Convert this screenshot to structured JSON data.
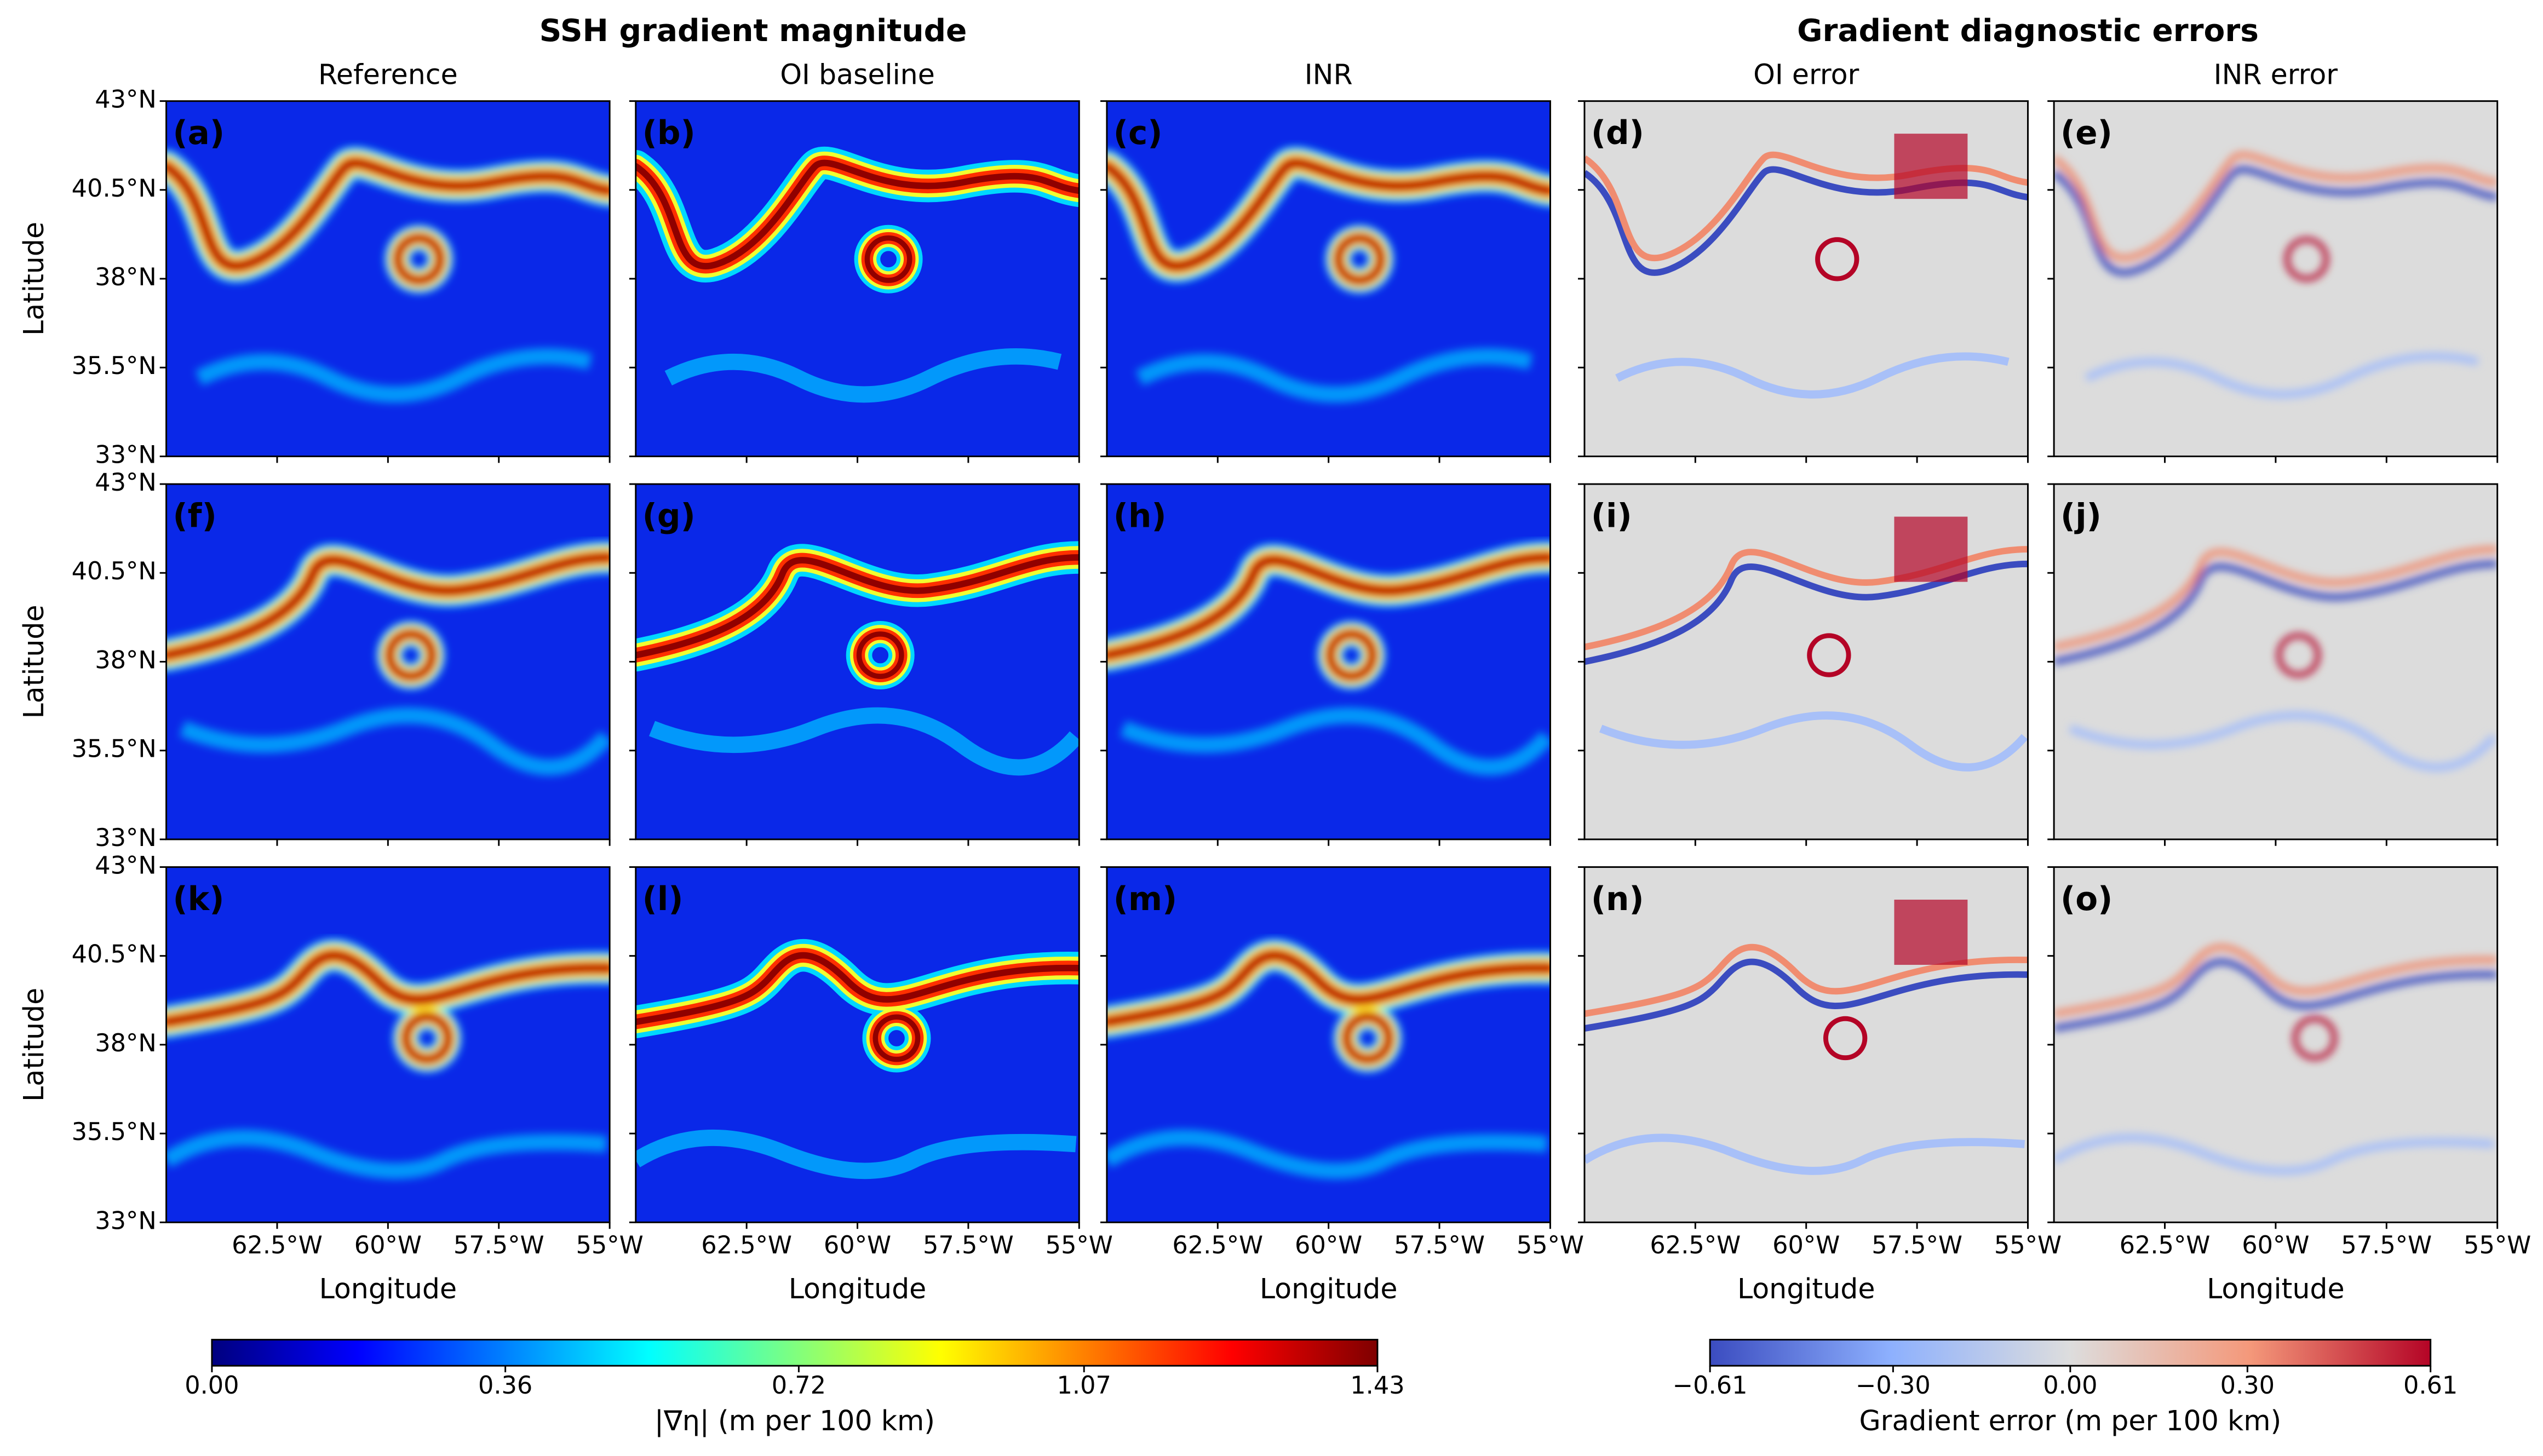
{
  "titles": [
    "SSH gradient magnitude",
    "Gradient diagnostic errors"
  ],
  "column_titles": [
    "Reference",
    "OI baseline",
    "INR",
    "OI error",
    "INR error"
  ],
  "panel_labels": [
    [
      "(a)",
      "(b)",
      "(c)",
      "(d)",
      "(e)"
    ],
    [
      "(f)",
      "(g)",
      "(h)",
      "(i)",
      "(j)"
    ],
    [
      "(k)",
      "(l)",
      "(m)",
      "(n)",
      "(o)"
    ]
  ],
  "ylabel": "Latitude",
  "xlabel": "Longitude",
  "ylim": [
    33,
    43
  ],
  "yticks": [
    {
      "value": 33,
      "label": "33°N"
    },
    {
      "value": 35.5,
      "label": "35.5°N"
    },
    {
      "value": 38,
      "label": "38°N"
    },
    {
      "value": 40.5,
      "label": "40.5°N"
    },
    {
      "value": 43,
      "label": "43°N"
    }
  ],
  "xlim": [
    -65,
    -55
  ],
  "xticks": [
    {
      "value": -62.5,
      "label": "62.5°W"
    },
    {
      "value": -60,
      "label": "60°W"
    },
    {
      "value": -57.5,
      "label": "57.5°W"
    },
    {
      "value": -55,
      "label": "55°W"
    }
  ],
  "colorbars": [
    {
      "label": "|∇η| (m per 100 km)",
      "lim": [
        0,
        1.43
      ],
      "ticks": [
        {
          "value": 0,
          "label": "0.00"
        },
        0.36,
        0.72,
        1.07,
        1.43
      ],
      "colors": [
        "#00007f",
        "#0000ff",
        "#007fff",
        "#00ffff",
        "#7fff7f",
        "#ffff00",
        "#ff7f00",
        "#ff0000",
        "#7f0000"
      ]
    },
    {
      "label": "Gradient error (m per 100 km)",
      "lim": [
        -0.61,
        0.61
      ],
      "ticks": [
        {
          "value": -0.61,
          "label": "−0.61"
        },
        {
          "value": -0.3,
          "label": "−0.30"
        },
        {
          "value": 0,
          "label": "0.00"
        },
        {
          "value": 0.3,
          "label": "0.30"
        },
        0.61
      ],
      "colors": [
        "#3b4cc0",
        "#8db0fe",
        "#dddddd",
        "#f4987a",
        "#b40426"
      ]
    }
  ]
}
